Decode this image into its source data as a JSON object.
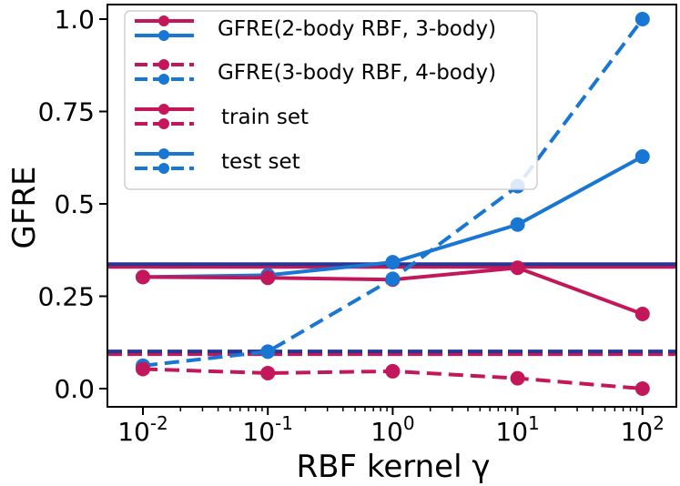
{
  "chart_data": {
    "type": "line",
    "xlabel": "RBF kernel γ",
    "ylabel": "GFRE",
    "x_scale": "log",
    "x": [
      0.01,
      0.1,
      1,
      10,
      100
    ],
    "x_tick_labels": [
      {
        "base": "10",
        "exp": "-2"
      },
      {
        "base": "10",
        "exp": "-1"
      },
      {
        "base": "10",
        "exp": "0"
      },
      {
        "base": "10",
        "exp": "1"
      },
      {
        "base": "10",
        "exp": "2"
      }
    ],
    "y_ticks": [
      0.0,
      0.25,
      0.5,
      0.75,
      1.0
    ],
    "y_tick_labels": [
      "0.0",
      "0.25",
      "0.5",
      "0.75",
      "1.0"
    ],
    "ylim": [
      -0.03,
      1.04
    ],
    "grid": false,
    "legend_position": "top-left",
    "legend": [
      {
        "label": "GFRE(2-body RBF, 3-body)",
        "style": "solid",
        "colors": [
          "#c2185b",
          "#1976d2"
        ]
      },
      {
        "label": "GFRE(3-body RBF, 4-body)",
        "style": "dashed",
        "colors": [
          "#c2185b",
          "#1976d2"
        ]
      },
      {
        "label": "train set",
        "style": "both",
        "colors": [
          "#c2185b",
          "#c2185b"
        ]
      },
      {
        "label": "test set",
        "style": "both",
        "colors": [
          "#1976d2",
          "#1976d2"
        ]
      }
    ],
    "series": [
      {
        "set": "test",
        "group": "2-body",
        "style": "solid",
        "color": "#1976d2",
        "values": [
          0.302,
          0.307,
          0.342,
          0.444,
          0.628
        ]
      },
      {
        "set": "train",
        "group": "2-body",
        "style": "solid",
        "color": "#c2185b",
        "values": [
          0.302,
          0.3,
          0.295,
          0.327,
          0.202
        ]
      },
      {
        "set": "test",
        "group": "3-body",
        "style": "dashed",
        "color": "#1976d2",
        "values": [
          0.062,
          0.1,
          0.297,
          0.548,
          1.0
        ]
      },
      {
        "set": "train",
        "group": "3-body",
        "style": "dashed",
        "color": "#c2185b",
        "values": [
          0.053,
          0.042,
          0.047,
          0.028,
          0.0
        ]
      }
    ],
    "reference_lines": [
      {
        "style": "solid",
        "y": 0.333,
        "colors": [
          "#c2185b",
          "#283593"
        ]
      },
      {
        "style": "dashed",
        "y": 0.097,
        "colors": [
          "#c2185b",
          "#283593"
        ]
      }
    ]
  }
}
